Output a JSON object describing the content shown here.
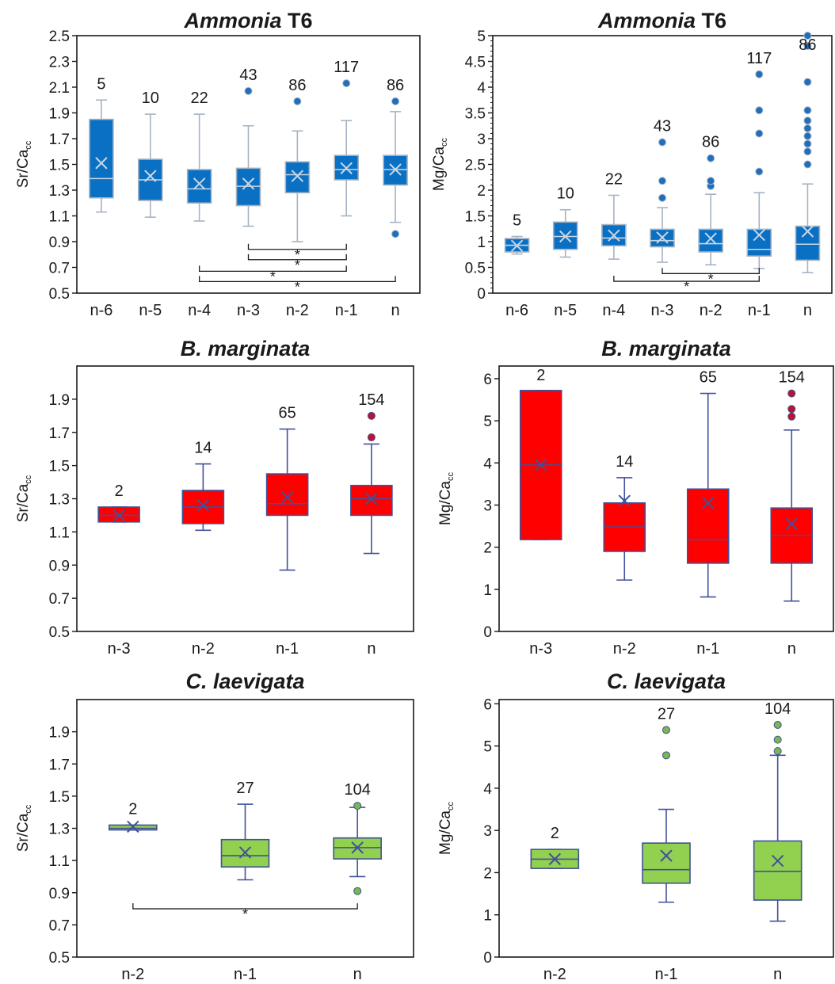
{
  "chart_data": [
    {
      "type": "box",
      "title_italic": "Ammonia",
      "title_plain": " T6",
      "ylabel_main": "Sr/Ca",
      "ylabel_sub": "cc",
      "ylim": [
        0.5,
        2.5
      ],
      "yticks": [
        "0.5",
        "0.7",
        "0.9",
        "1.1",
        "1.3",
        "1.5",
        "1.7",
        "1.9",
        "2.1",
        "2.3",
        "2.5"
      ],
      "categories": [
        "n-6",
        "n-5",
        "n-4",
        "n-3",
        "n-2",
        "n-1",
        "n"
      ],
      "colors": {
        "fill": "#0a70c4",
        "edge": "#a6b3c2",
        "mean": "#c9d6e3",
        "outlier": "#1f6fbd"
      },
      "boxes": [
        {
          "cat": "n-6",
          "n": "5",
          "min": 1.13,
          "q1": 1.24,
          "median": 1.39,
          "q3": 1.85,
          "max": 2.0,
          "mean": 1.51,
          "outliers": []
        },
        {
          "cat": "n-5",
          "n": "10",
          "min": 1.09,
          "q1": 1.22,
          "median": 1.38,
          "q3": 1.54,
          "max": 1.89,
          "mean": 1.41,
          "outliers": []
        },
        {
          "cat": "n-4",
          "n": "22",
          "min": 1.06,
          "q1": 1.2,
          "median": 1.31,
          "q3": 1.46,
          "max": 1.89,
          "mean": 1.35,
          "outliers": []
        },
        {
          "cat": "n-3",
          "n": "43",
          "min": 1.02,
          "q1": 1.18,
          "median": 1.33,
          "q3": 1.47,
          "max": 1.8,
          "mean": 1.35,
          "outliers": [
            2.07
          ]
        },
        {
          "cat": "n-2",
          "n": "86",
          "min": 0.9,
          "q1": 1.28,
          "median": 1.42,
          "q3": 1.52,
          "max": 1.76,
          "mean": 1.41,
          "outliers": [
            1.99
          ]
        },
        {
          "cat": "n-1",
          "n": "117",
          "min": 1.1,
          "q1": 1.38,
          "median": 1.46,
          "q3": 1.57,
          "max": 1.84,
          "mean": 1.47,
          "outliers": [
            2.13
          ]
        },
        {
          "cat": "n",
          "n": "86",
          "min": 1.05,
          "q1": 1.34,
          "median": 1.46,
          "q3": 1.57,
          "max": 1.91,
          "mean": 1.46,
          "outliers": [
            1.99,
            0.96
          ]
        }
      ],
      "significance": [
        {
          "from": "n-3",
          "to": "n-1",
          "y": 0.84,
          "label": "*"
        },
        {
          "from": "n-3",
          "to": "n-1",
          "y": 0.76,
          "label": "*"
        },
        {
          "from": "n-4",
          "to": "n-1",
          "y": 0.67,
          "label": "*"
        },
        {
          "from": "n-4",
          "to": "n",
          "y": 0.59,
          "label": "*"
        }
      ]
    },
    {
      "type": "box",
      "title_italic": "Ammonia",
      "title_plain": " T6",
      "ylabel_main": "Mg/Ca",
      "ylabel_sub": "cc",
      "ylim": [
        0,
        5
      ],
      "yticks": [
        "0",
        "0.5",
        "1",
        "1.5",
        "2",
        "2.5",
        "3",
        "3.5",
        "4",
        "4.5",
        "5"
      ],
      "categories": [
        "n-6",
        "n-5",
        "n-4",
        "n-3",
        "n-2",
        "n-1",
        "n"
      ],
      "colors": {
        "fill": "#0a70c4",
        "edge": "#a6b3c2",
        "mean": "#c9d6e3",
        "outlier": "#1f6fbd"
      },
      "boxes": [
        {
          "cat": "n-6",
          "n": "5",
          "min": 0.76,
          "q1": 0.8,
          "median": 0.93,
          "q3": 1.06,
          "max": 1.1,
          "mean": 0.92,
          "outliers": []
        },
        {
          "cat": "n-5",
          "n": "10",
          "min": 0.7,
          "q1": 0.85,
          "median": 1.1,
          "q3": 1.38,
          "max": 1.62,
          "mean": 1.1,
          "outliers": []
        },
        {
          "cat": "n-4",
          "n": "22",
          "min": 0.66,
          "q1": 0.92,
          "median": 1.07,
          "q3": 1.33,
          "max": 1.9,
          "mean": 1.12,
          "outliers": []
        },
        {
          "cat": "n-3",
          "n": "43",
          "min": 0.6,
          "q1": 0.9,
          "median": 1.02,
          "q3": 1.24,
          "max": 1.66,
          "mean": 1.08,
          "outliers": [
            1.85,
            2.18,
            2.93
          ]
        },
        {
          "cat": "n-2",
          "n": "86",
          "min": 0.55,
          "q1": 0.8,
          "median": 0.96,
          "q3": 1.24,
          "max": 1.92,
          "mean": 1.06,
          "outliers": [
            2.08,
            2.18,
            2.62
          ]
        },
        {
          "cat": "n-1",
          "n": "117",
          "min": 0.48,
          "q1": 0.72,
          "median": 0.85,
          "q3": 1.24,
          "max": 1.95,
          "mean": 1.13,
          "outliers": [
            2.36,
            3.1,
            3.55,
            4.25
          ]
        },
        {
          "cat": "n",
          "n": "86",
          "min": 0.4,
          "q1": 0.64,
          "median": 0.95,
          "q3": 1.3,
          "max": 2.12,
          "mean": 1.2,
          "outliers": [
            2.5,
            2.75,
            2.9,
            3.05,
            3.2,
            3.35,
            3.55,
            4.1,
            4.8,
            5.0
          ]
        }
      ],
      "significance": [
        {
          "from": "n-3",
          "to": "n-1",
          "y": 0.38,
          "label": "*"
        },
        {
          "from": "n-4",
          "to": "n-1",
          "y": 0.23,
          "label": "*"
        }
      ]
    },
    {
      "type": "box",
      "title_italic": "B. marginata",
      "title_plain": "",
      "ylabel_main": "Sr/Ca",
      "ylabel_sub": "cc",
      "ylim": [
        0.5,
        2.1
      ],
      "yticks": [
        "0.5",
        "0.7",
        "0.9",
        "1.1",
        "1.3",
        "1.5",
        "1.7",
        "1.9"
      ],
      "categories": [
        "n-3",
        "n-2",
        "n-1",
        "n"
      ],
      "colors": {
        "fill": "#ff0000",
        "edge": "#41519a",
        "mean": "#41519a",
        "outlier": "#c0102a"
      },
      "boxes": [
        {
          "cat": "n-3",
          "n": "2",
          "min": 1.16,
          "q1": 1.16,
          "median": 1.2,
          "q3": 1.25,
          "max": 1.25,
          "mean": 1.2,
          "outliers": []
        },
        {
          "cat": "n-2",
          "n": "14",
          "min": 1.11,
          "q1": 1.15,
          "median": 1.25,
          "q3": 1.35,
          "max": 1.51,
          "mean": 1.26,
          "outliers": []
        },
        {
          "cat": "n-1",
          "n": "65",
          "min": 0.87,
          "q1": 1.2,
          "median": 1.27,
          "q3": 1.45,
          "max": 1.72,
          "mean": 1.31,
          "outliers": []
        },
        {
          "cat": "n",
          "n": "154",
          "min": 0.97,
          "q1": 1.2,
          "median": 1.3,
          "q3": 1.38,
          "max": 1.63,
          "mean": 1.3,
          "outliers": [
            1.67,
            1.8
          ]
        }
      ],
      "significance": []
    },
    {
      "type": "box",
      "title_italic": "B. marginata",
      "title_plain": "",
      "ylabel_main": "Mg/Ca",
      "ylabel_sub": "cc",
      "ylim": [
        0,
        6.3
      ],
      "yticks": [
        "0",
        "1",
        "2",
        "3",
        "4",
        "5",
        "6"
      ],
      "categories": [
        "n-3",
        "n-2",
        "n-1",
        "n"
      ],
      "colors": {
        "fill": "#ff0000",
        "edge": "#41519a",
        "mean": "#41519a",
        "outlier": "#c0102a"
      },
      "boxes": [
        {
          "cat": "n-3",
          "n": "2",
          "min": 2.18,
          "q1": 2.18,
          "median": 3.95,
          "q3": 5.72,
          "max": 5.72,
          "mean": 3.95,
          "outliers": []
        },
        {
          "cat": "n-2",
          "n": "14",
          "min": 1.22,
          "q1": 1.9,
          "median": 2.48,
          "q3": 3.05,
          "max": 3.65,
          "mean": 3.1,
          "outliers": []
        },
        {
          "cat": "n-1",
          "n": "65",
          "min": 0.82,
          "q1": 1.62,
          "median": 2.18,
          "q3": 3.38,
          "max": 5.65,
          "mean": 3.05,
          "outliers": []
        },
        {
          "cat": "n",
          "n": "154",
          "min": 0.72,
          "q1": 1.62,
          "median": 2.28,
          "q3": 2.93,
          "max": 4.78,
          "mean": 2.55,
          "outliers": [
            5.1,
            5.28,
            5.65
          ]
        }
      ],
      "significance": []
    },
    {
      "type": "box",
      "title_italic": "C. laevigata",
      "title_plain": "",
      "ylabel_main": "Sr/Ca",
      "ylabel_sub": "cc",
      "ylim": [
        0.5,
        2.1
      ],
      "yticks": [
        "0.5",
        "0.7",
        "0.9",
        "1.1",
        "1.3",
        "1.5",
        "1.7",
        "1.9"
      ],
      "categories": [
        "n-2",
        "n-1",
        "n"
      ],
      "colors": {
        "fill": "#92d050",
        "edge": "#41519a",
        "mean": "#41519a",
        "outlier": "#77b94a"
      },
      "boxes": [
        {
          "cat": "n-2",
          "n": "2",
          "min": 1.29,
          "q1": 1.29,
          "median": 1.3,
          "q3": 1.32,
          "max": 1.32,
          "mean": 1.31,
          "outliers": []
        },
        {
          "cat": "n-1",
          "n": "27",
          "min": 0.98,
          "q1": 1.06,
          "median": 1.13,
          "q3": 1.23,
          "max": 1.45,
          "mean": 1.15,
          "outliers": []
        },
        {
          "cat": "n",
          "n": "104",
          "min": 1.0,
          "q1": 1.11,
          "median": 1.18,
          "q3": 1.24,
          "max": 1.43,
          "mean": 1.18,
          "outliers": [
            1.44,
            0.91
          ]
        }
      ],
      "significance": [
        {
          "from": "n-2",
          "to": "n",
          "y": 0.8,
          "label": "*"
        }
      ]
    },
    {
      "type": "box",
      "title_italic": "C. laevigata",
      "title_plain": "",
      "ylabel_main": "Mg/Ca",
      "ylabel_sub": "cc",
      "ylim": [
        0,
        6.1
      ],
      "yticks": [
        "0",
        "1",
        "2",
        "3",
        "4",
        "5",
        "6"
      ],
      "categories": [
        "n-2",
        "n-1",
        "n"
      ],
      "colors": {
        "fill": "#92d050",
        "edge": "#41519a",
        "mean": "#41519a",
        "outlier": "#77b94a"
      },
      "boxes": [
        {
          "cat": "n-2",
          "n": "2",
          "min": 2.1,
          "q1": 2.1,
          "median": 2.32,
          "q3": 2.55,
          "max": 2.55,
          "mean": 2.32,
          "outliers": []
        },
        {
          "cat": "n-1",
          "n": "27",
          "min": 1.3,
          "q1": 1.75,
          "median": 2.07,
          "q3": 2.7,
          "max": 3.5,
          "mean": 2.4,
          "outliers": [
            4.78,
            5.38
          ]
        },
        {
          "cat": "n",
          "n": "104",
          "min": 0.85,
          "q1": 1.35,
          "median": 2.03,
          "q3": 2.75,
          "max": 4.78,
          "mean": 2.28,
          "outliers": [
            4.88,
            5.15,
            5.5
          ]
        }
      ],
      "significance": []
    }
  ]
}
